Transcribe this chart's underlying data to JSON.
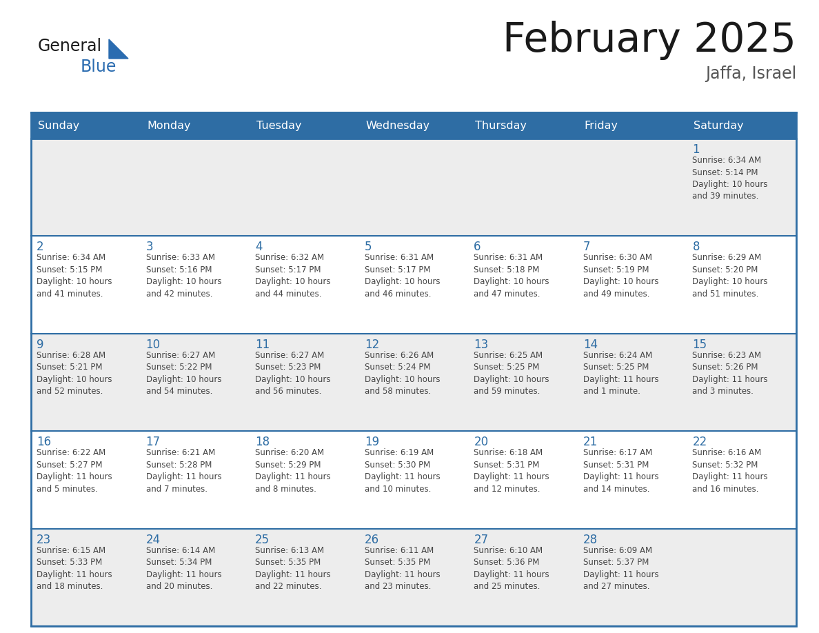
{
  "title": "February 2025",
  "subtitle": "Jaffa, Israel",
  "header_bg": "#2E6DA4",
  "header_text_color": "#FFFFFF",
  "row_bg_odd": "#EDEDED",
  "row_bg_even": "#FFFFFF",
  "cell_border_color": "#2E6DA4",
  "day_text_color": "#2E6DA4",
  "info_text_color": "#444444",
  "title_color": "#1a1a1a",
  "subtitle_color": "#555555",
  "logo_general_color": "#1a1a1a",
  "logo_blue_color": "#2B6CB0",
  "logo_triangle_color": "#2B6CB0",
  "days_of_week": [
    "Sunday",
    "Monday",
    "Tuesday",
    "Wednesday",
    "Thursday",
    "Friday",
    "Saturday"
  ],
  "weeks": [
    [
      {
        "day": null,
        "info": null
      },
      {
        "day": null,
        "info": null
      },
      {
        "day": null,
        "info": null
      },
      {
        "day": null,
        "info": null
      },
      {
        "day": null,
        "info": null
      },
      {
        "day": null,
        "info": null
      },
      {
        "day": "1",
        "info": "Sunrise: 6:34 AM\nSunset: 5:14 PM\nDaylight: 10 hours\nand 39 minutes."
      }
    ],
    [
      {
        "day": "2",
        "info": "Sunrise: 6:34 AM\nSunset: 5:15 PM\nDaylight: 10 hours\nand 41 minutes."
      },
      {
        "day": "3",
        "info": "Sunrise: 6:33 AM\nSunset: 5:16 PM\nDaylight: 10 hours\nand 42 minutes."
      },
      {
        "day": "4",
        "info": "Sunrise: 6:32 AM\nSunset: 5:17 PM\nDaylight: 10 hours\nand 44 minutes."
      },
      {
        "day": "5",
        "info": "Sunrise: 6:31 AM\nSunset: 5:17 PM\nDaylight: 10 hours\nand 46 minutes."
      },
      {
        "day": "6",
        "info": "Sunrise: 6:31 AM\nSunset: 5:18 PM\nDaylight: 10 hours\nand 47 minutes."
      },
      {
        "day": "7",
        "info": "Sunrise: 6:30 AM\nSunset: 5:19 PM\nDaylight: 10 hours\nand 49 minutes."
      },
      {
        "day": "8",
        "info": "Sunrise: 6:29 AM\nSunset: 5:20 PM\nDaylight: 10 hours\nand 51 minutes."
      }
    ],
    [
      {
        "day": "9",
        "info": "Sunrise: 6:28 AM\nSunset: 5:21 PM\nDaylight: 10 hours\nand 52 minutes."
      },
      {
        "day": "10",
        "info": "Sunrise: 6:27 AM\nSunset: 5:22 PM\nDaylight: 10 hours\nand 54 minutes."
      },
      {
        "day": "11",
        "info": "Sunrise: 6:27 AM\nSunset: 5:23 PM\nDaylight: 10 hours\nand 56 minutes."
      },
      {
        "day": "12",
        "info": "Sunrise: 6:26 AM\nSunset: 5:24 PM\nDaylight: 10 hours\nand 58 minutes."
      },
      {
        "day": "13",
        "info": "Sunrise: 6:25 AM\nSunset: 5:25 PM\nDaylight: 10 hours\nand 59 minutes."
      },
      {
        "day": "14",
        "info": "Sunrise: 6:24 AM\nSunset: 5:25 PM\nDaylight: 11 hours\nand 1 minute."
      },
      {
        "day": "15",
        "info": "Sunrise: 6:23 AM\nSunset: 5:26 PM\nDaylight: 11 hours\nand 3 minutes."
      }
    ],
    [
      {
        "day": "16",
        "info": "Sunrise: 6:22 AM\nSunset: 5:27 PM\nDaylight: 11 hours\nand 5 minutes."
      },
      {
        "day": "17",
        "info": "Sunrise: 6:21 AM\nSunset: 5:28 PM\nDaylight: 11 hours\nand 7 minutes."
      },
      {
        "day": "18",
        "info": "Sunrise: 6:20 AM\nSunset: 5:29 PM\nDaylight: 11 hours\nand 8 minutes."
      },
      {
        "day": "19",
        "info": "Sunrise: 6:19 AM\nSunset: 5:30 PM\nDaylight: 11 hours\nand 10 minutes."
      },
      {
        "day": "20",
        "info": "Sunrise: 6:18 AM\nSunset: 5:31 PM\nDaylight: 11 hours\nand 12 minutes."
      },
      {
        "day": "21",
        "info": "Sunrise: 6:17 AM\nSunset: 5:31 PM\nDaylight: 11 hours\nand 14 minutes."
      },
      {
        "day": "22",
        "info": "Sunrise: 6:16 AM\nSunset: 5:32 PM\nDaylight: 11 hours\nand 16 minutes."
      }
    ],
    [
      {
        "day": "23",
        "info": "Sunrise: 6:15 AM\nSunset: 5:33 PM\nDaylight: 11 hours\nand 18 minutes."
      },
      {
        "day": "24",
        "info": "Sunrise: 6:14 AM\nSunset: 5:34 PM\nDaylight: 11 hours\nand 20 minutes."
      },
      {
        "day": "25",
        "info": "Sunrise: 6:13 AM\nSunset: 5:35 PM\nDaylight: 11 hours\nand 22 minutes."
      },
      {
        "day": "26",
        "info": "Sunrise: 6:11 AM\nSunset: 5:35 PM\nDaylight: 11 hours\nand 23 minutes."
      },
      {
        "day": "27",
        "info": "Sunrise: 6:10 AM\nSunset: 5:36 PM\nDaylight: 11 hours\nand 25 minutes."
      },
      {
        "day": "28",
        "info": "Sunrise: 6:09 AM\nSunset: 5:37 PM\nDaylight: 11 hours\nand 27 minutes."
      },
      {
        "day": null,
        "info": null
      }
    ]
  ]
}
